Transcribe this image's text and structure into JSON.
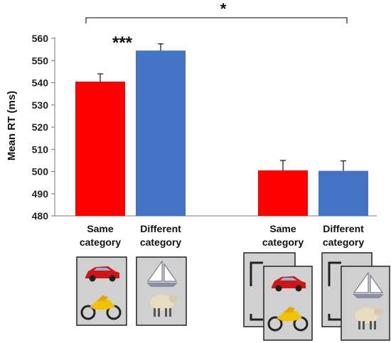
{
  "chart_data": {
    "type": "bar",
    "title": "",
    "ylabel": "Mean RT (ms)",
    "xlabel": "",
    "ylim": [
      480,
      560
    ],
    "yticks": [
      480,
      490,
      500,
      510,
      520,
      530,
      540,
      550,
      560
    ],
    "grid": false,
    "legend": "none",
    "bars": [
      {
        "label_line1": "Same",
        "label_line2": "category",
        "value": 540.5,
        "error": 3.5,
        "color": "#ff0000"
      },
      {
        "label_line1": "Different",
        "label_line2": "category",
        "value": 554.5,
        "error": 3.0,
        "color": "#4472c4"
      },
      {
        "label_line1": "Same",
        "label_line2": "category",
        "value": 500.5,
        "error": 4.5,
        "color": "#ff0000"
      },
      {
        "label_line1": "Different",
        "label_line2": "category",
        "value": 500.3,
        "error": 4.5,
        "color": "#4472c4"
      }
    ],
    "annotations": {
      "within_pair": "***",
      "between_groups": "*"
    }
  },
  "stimulus_icons": {
    "same_category": [
      "red-car-icon",
      "yellow-motorbike-icon"
    ],
    "different_category": [
      "sailboat-icon",
      "sheep-icon"
    ]
  }
}
